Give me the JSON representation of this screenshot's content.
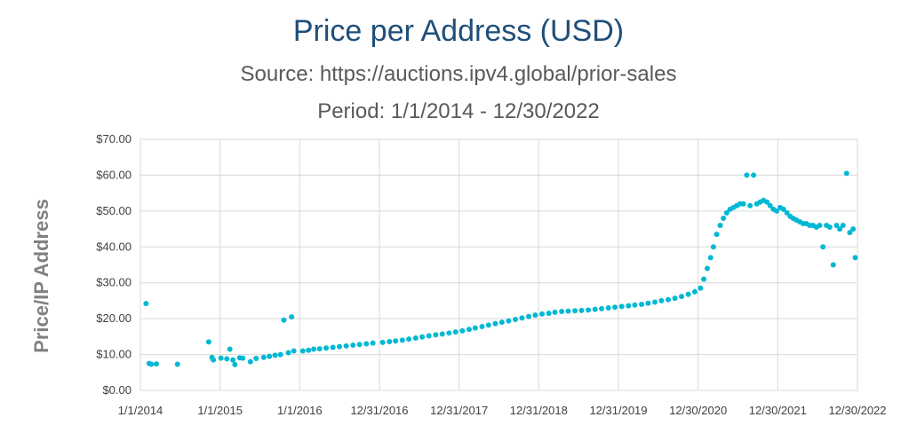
{
  "chart_data": {
    "type": "scatter",
    "title": "Price per Address (USD)",
    "subtitle": "Source: https://auctions.ipv4.global/prior-sales",
    "period": "Period: 1/1/2014 - 12/30/2022",
    "xlabel": "",
    "ylabel": "Price/IP Address",
    "ylim": [
      0,
      70
    ],
    "xlim": [
      "2014-01-01",
      "2022-12-30"
    ],
    "grid": true,
    "legend": "none",
    "y_ticks": [
      0,
      10,
      20,
      30,
      40,
      50,
      60,
      70
    ],
    "y_tick_labels": [
      "$0.00",
      "$10.00",
      "$20.00",
      "$30.00",
      "$40.00",
      "$50.00",
      "$60.00",
      "$70.00"
    ],
    "x_ticks": [
      "2014-01-01",
      "2015-01-01",
      "2016-01-01",
      "2016-12-31",
      "2017-12-31",
      "2018-12-31",
      "2019-12-31",
      "2020-12-30",
      "2021-12-30",
      "2022-12-30"
    ],
    "x_tick_labels": [
      "1/1/2014",
      "1/1/2015",
      "1/1/2016",
      "12/31/2016",
      "12/31/2017",
      "12/31/2018",
      "12/31/2019",
      "12/30/2020",
      "12/30/2021",
      "12/30/2022"
    ],
    "marker_color": "#00b8d4",
    "series": [
      {
        "x": [
          "2014-01-27",
          "2014-02-10",
          "2014-02-20",
          "2014-03-15",
          "2014-06-20",
          "2014-11-10",
          "2014-11-25",
          "2014-12-01",
          "2015-01-05",
          "2015-02-01",
          "2015-02-15",
          "2015-03-01",
          "2015-03-10",
          "2015-04-01",
          "2015-04-15",
          "2015-05-20",
          "2015-06-15",
          "2015-07-20",
          "2015-08-15",
          "2015-09-10",
          "2015-10-05",
          "2015-10-20",
          "2015-11-10",
          "2015-11-25",
          "2015-12-05",
          "2016-01-15",
          "2016-02-10",
          "2016-03-05",
          "2016-04-01",
          "2016-05-01",
          "2016-06-01",
          "2016-07-01",
          "2016-08-01",
          "2016-09-01",
          "2016-10-01",
          "2016-11-01",
          "2016-12-01",
          "2017-01-15",
          "2017-02-15",
          "2017-03-15",
          "2017-04-15",
          "2017-05-15",
          "2017-06-15",
          "2017-07-15",
          "2017-08-15",
          "2017-09-15",
          "2017-10-15",
          "2017-11-15",
          "2017-12-15",
          "2018-01-15",
          "2018-02-15",
          "2018-03-15",
          "2018-04-15",
          "2018-05-15",
          "2018-06-15",
          "2018-07-15",
          "2018-08-15",
          "2018-09-15",
          "2018-10-15",
          "2018-11-15",
          "2018-12-15",
          "2019-01-15",
          "2019-02-15",
          "2019-03-15",
          "2019-04-15",
          "2019-05-15",
          "2019-06-15",
          "2019-07-15",
          "2019-08-15",
          "2019-09-15",
          "2019-10-15",
          "2019-11-15",
          "2019-12-15",
          "2020-01-15",
          "2020-02-15",
          "2020-03-15",
          "2020-04-15",
          "2020-05-15",
          "2020-06-15",
          "2020-07-15",
          "2020-08-15",
          "2020-09-15",
          "2020-10-15",
          "2020-11-15",
          "2020-12-15",
          "2021-01-10",
          "2021-01-25",
          "2021-02-10",
          "2021-02-25",
          "2021-03-10",
          "2021-03-25",
          "2021-04-10",
          "2021-04-25",
          "2021-05-10",
          "2021-05-25",
          "2021-06-10",
          "2021-06-25",
          "2021-07-10",
          "2021-07-25",
          "2021-08-10",
          "2021-08-25",
          "2021-09-10",
          "2021-09-25",
          "2021-10-10",
          "2021-10-25",
          "2021-11-10",
          "2021-11-25",
          "2021-12-10",
          "2021-12-25",
          "2022-01-10",
          "2022-01-25",
          "2022-02-10",
          "2022-02-25",
          "2022-03-10",
          "2022-03-25",
          "2022-04-10",
          "2022-04-25",
          "2022-05-10",
          "2022-05-25",
          "2022-06-10",
          "2022-06-25",
          "2022-07-10",
          "2022-07-25",
          "2022-08-10",
          "2022-08-25",
          "2022-09-10",
          "2022-09-25",
          "2022-10-10",
          "2022-10-25",
          "2022-11-10",
          "2022-11-25",
          "2022-12-10",
          "2022-12-20"
        ],
        "y": [
          24.2,
          7.5,
          7.3,
          7.4,
          7.3,
          13.5,
          9.2,
          8.5,
          9.0,
          8.8,
          11.5,
          8.5,
          7.2,
          9.1,
          9.0,
          8.0,
          8.9,
          9.2,
          9.5,
          9.8,
          10.0,
          19.6,
          10.5,
          20.5,
          11.0,
          11.0,
          11.2,
          11.5,
          11.6,
          11.8,
          12.0,
          12.2,
          12.4,
          12.6,
          12.8,
          13.0,
          13.2,
          13.4,
          13.6,
          13.8,
          14.0,
          14.3,
          14.6,
          14.9,
          15.2,
          15.5,
          15.7,
          16.0,
          16.3,
          16.6,
          17.0,
          17.4,
          17.8,
          18.2,
          18.6,
          19.0,
          19.4,
          19.8,
          20.2,
          20.6,
          21.0,
          21.3,
          21.5,
          21.8,
          22.0,
          22.1,
          22.2,
          22.3,
          22.4,
          22.6,
          22.8,
          23.0,
          23.2,
          23.4,
          23.6,
          23.8,
          24.0,
          24.3,
          24.6,
          25.0,
          25.3,
          25.7,
          26.2,
          26.8,
          27.5,
          28.5,
          31.0,
          34.0,
          37.0,
          40.0,
          43.5,
          46.0,
          48.0,
          49.5,
          50.5,
          51.0,
          51.5,
          52.0,
          52.0,
          60.0,
          51.5,
          60.0,
          52.0,
          52.5,
          53.0,
          52.5,
          51.5,
          50.5,
          50.0,
          51.0,
          50.5,
          49.5,
          48.5,
          48.0,
          47.5,
          47.0,
          46.5,
          46.5,
          46.0,
          46.0,
          45.5,
          46.0,
          40.0,
          46.0,
          45.5,
          35.0,
          46.0,
          45.0,
          46.0,
          60.5,
          44.0,
          45.0,
          37.0
        ]
      }
    ]
  }
}
